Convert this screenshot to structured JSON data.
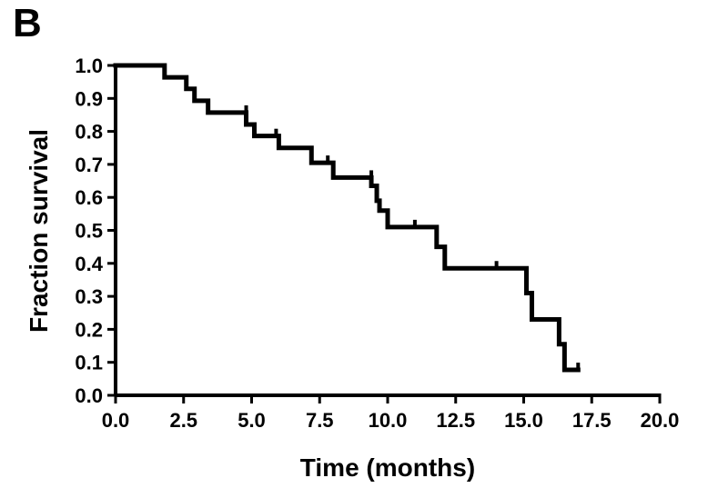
{
  "panel_label": "B",
  "chart_data": {
    "type": "line",
    "step": true,
    "xlabel": "Time (months)",
    "ylabel": "Fraction survival",
    "xlim": [
      0,
      20
    ],
    "ylim": [
      0,
      1
    ],
    "x_ticks": [
      "0.0",
      "2.5",
      "5.0",
      "7.5",
      "10.0",
      "12.5",
      "15.0",
      "17.5",
      "20.0"
    ],
    "y_ticks": [
      "0.0",
      "0.1",
      "0.2",
      "0.3",
      "0.4",
      "0.5",
      "0.6",
      "0.7",
      "0.8",
      "0.9",
      "1.0"
    ],
    "grid": false,
    "line_color": "#000000",
    "series": [
      {
        "x": [
          0,
          1.8,
          2.6,
          2.9,
          3.4,
          4.8,
          5.1,
          6.0,
          7.2,
          7.9,
          8.0,
          9.4,
          9.6,
          9.7,
          10.0,
          11.8,
          12.1,
          15.1,
          15.3,
          16.3,
          16.5,
          17.0
        ],
        "y": [
          1.0,
          0.964,
          0.929,
          0.893,
          0.857,
          0.821,
          0.786,
          0.75,
          0.705,
          0.705,
          0.66,
          0.635,
          0.59,
          0.56,
          0.51,
          0.45,
          0.385,
          0.31,
          0.23,
          0.155,
          0.077,
          0.077
        ]
      }
    ],
    "censor_marks": [
      {
        "x": 4.8,
        "y": 0.857
      },
      {
        "x": 5.9,
        "y": 0.786
      },
      {
        "x": 7.8,
        "y": 0.705
      },
      {
        "x": 9.4,
        "y": 0.66
      },
      {
        "x": 11.0,
        "y": 0.51
      },
      {
        "x": 14.0,
        "y": 0.385
      },
      {
        "x": 17.0,
        "y": 0.077
      }
    ]
  }
}
